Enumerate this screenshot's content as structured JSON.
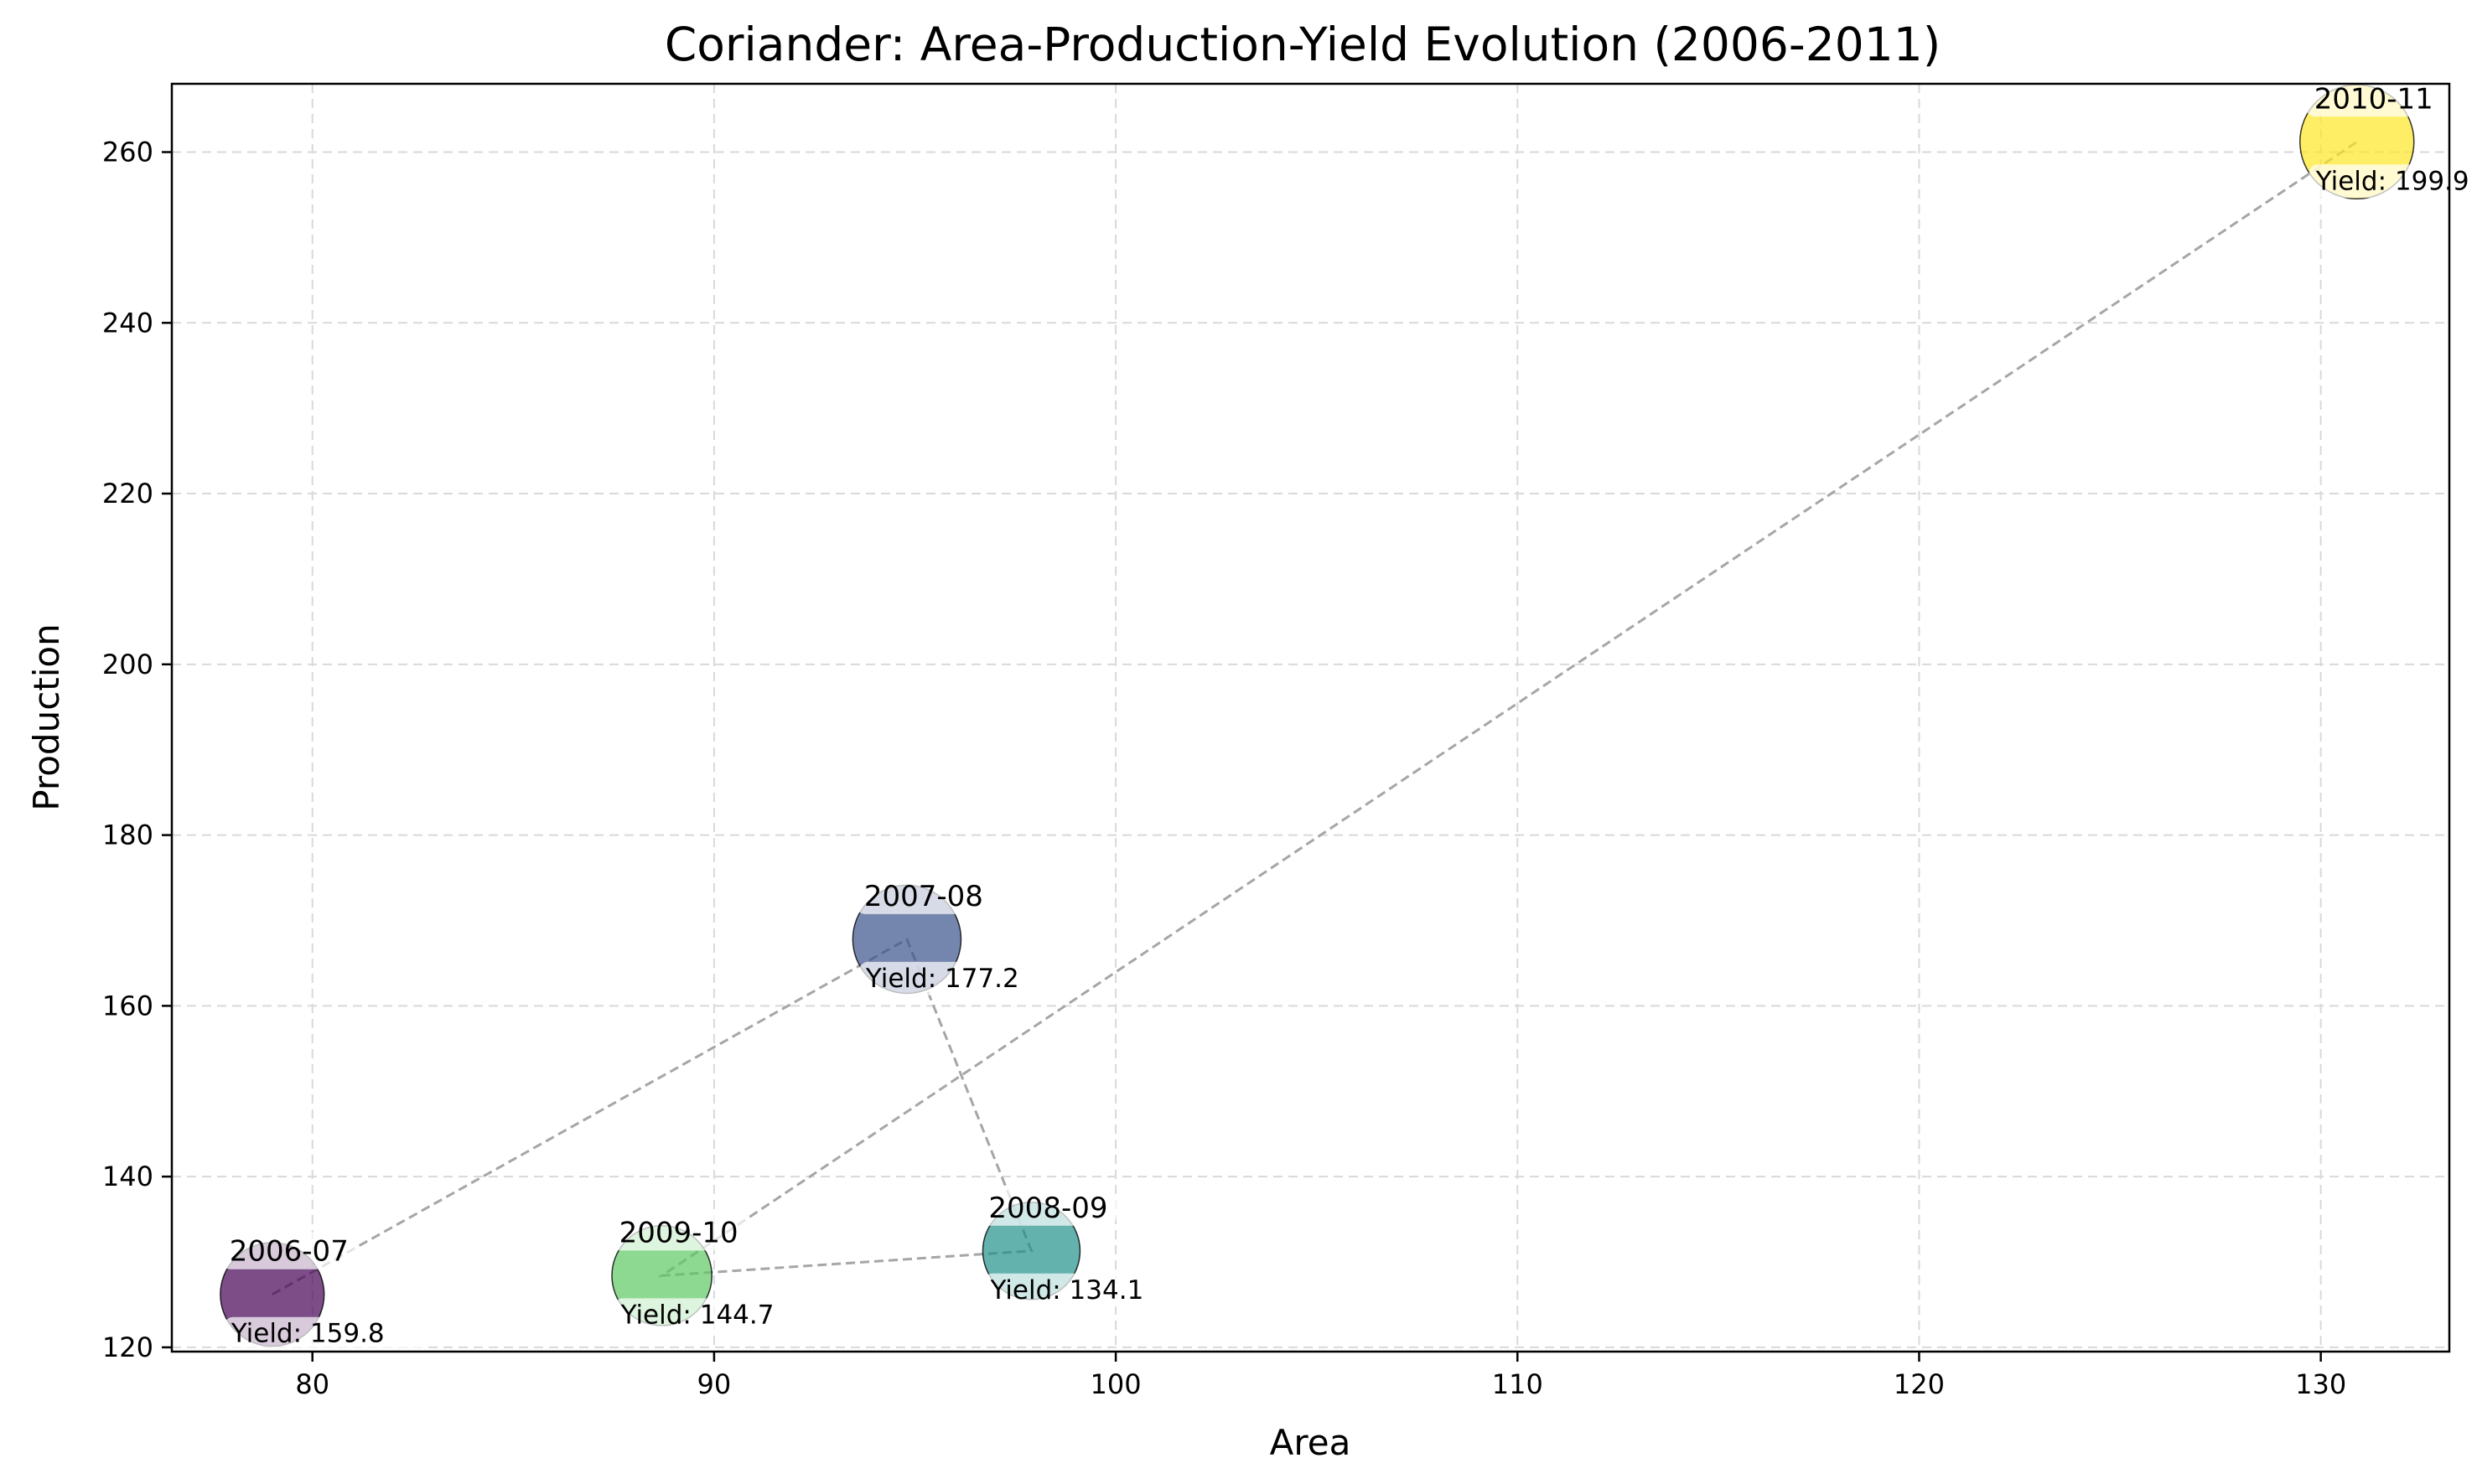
{
  "chart_data": {
    "type": "scatter",
    "title": "Coriander: Area-Production-Yield Evolution (2006-2011)",
    "xlabel": "Area",
    "ylabel": "Production",
    "xlim": [
      76.5,
      133.2
    ],
    "ylim": [
      119.5,
      268
    ],
    "xticks": [
      80,
      90,
      100,
      110,
      120,
      130
    ],
    "yticks": [
      120,
      140,
      160,
      180,
      200,
      220,
      240,
      260
    ],
    "grid": true,
    "connect_points": true,
    "color_scale": "viridis",
    "points": [
      {
        "label": "2006-07",
        "area": 79.0,
        "production": 126.2,
        "yield": 159.8,
        "yield_text": "Yield: 159.8",
        "color": "#440154"
      },
      {
        "label": "2007-08",
        "area": 94.8,
        "production": 167.8,
        "yield": 177.2,
        "yield_text": "Yield: 177.2",
        "color": "#3b528b"
      },
      {
        "label": "2008-09",
        "area": 97.9,
        "production": 131.3,
        "yield": 134.1,
        "yield_text": "Yield: 134.1",
        "color": "#21918c"
      },
      {
        "label": "2009-10",
        "area": 88.7,
        "production": 128.4,
        "yield": 144.7,
        "yield_text": "Yield: 144.7",
        "color": "#5ec962"
      },
      {
        "label": "2010-11",
        "area": 130.9,
        "production": 261.2,
        "yield": 199.9,
        "yield_text": "Yield: 199.9",
        "color": "#fde725"
      }
    ]
  }
}
